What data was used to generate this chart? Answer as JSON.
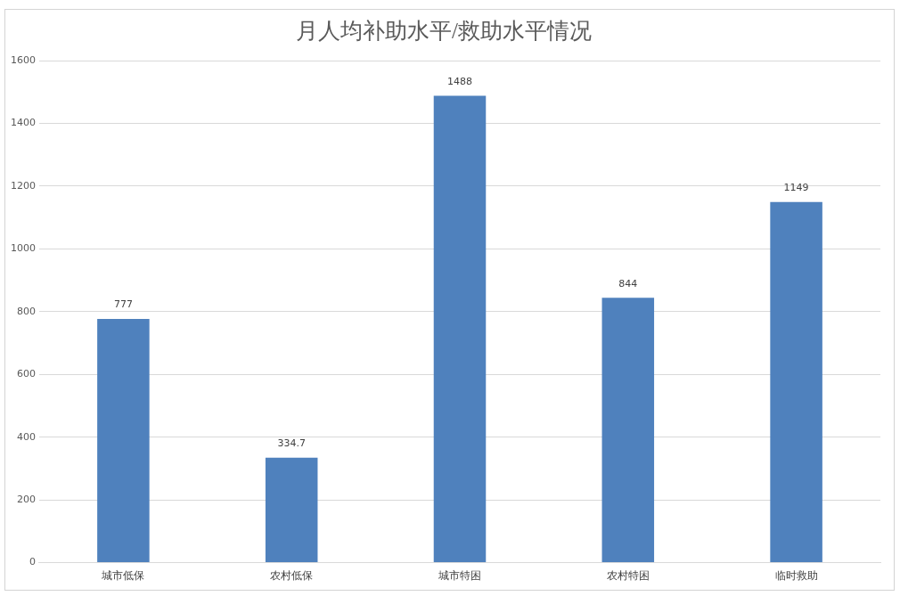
{
  "chart_data": {
    "type": "bar",
    "title": "月人均补助水平/救助水平情况",
    "categories": [
      "城市低保",
      "农村低保",
      "城市特困",
      "农村特困",
      "临时救助"
    ],
    "values": [
      777,
      334.7,
      1488,
      844,
      1149
    ],
    "color": "#4f81bd",
    "ylim": [
      0,
      1600
    ],
    "yticks": [
      0,
      200,
      400,
      600,
      800,
      1000,
      1200,
      1400,
      1600
    ],
    "grid": "y",
    "data_labels": true
  }
}
